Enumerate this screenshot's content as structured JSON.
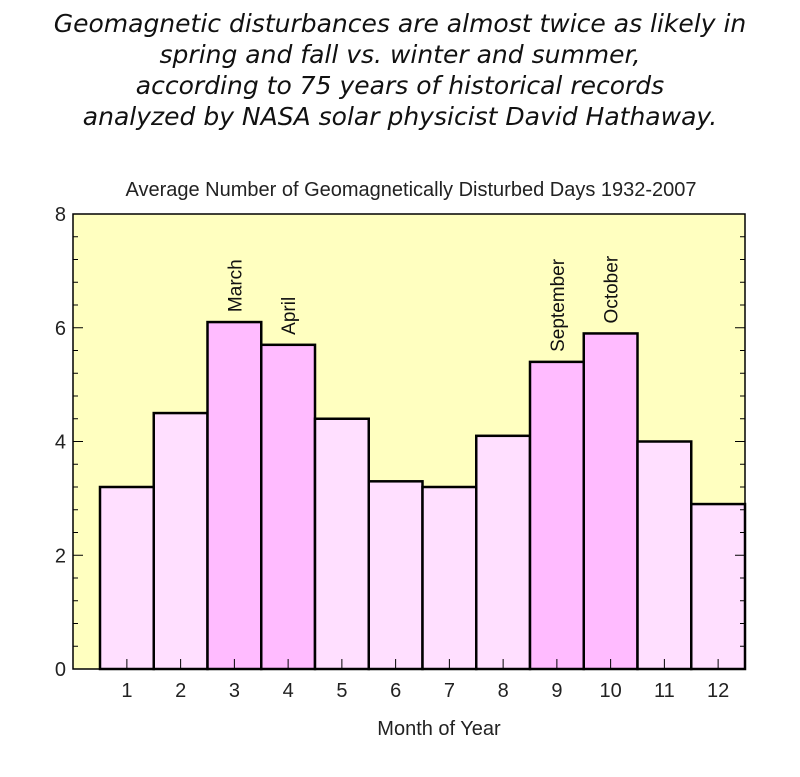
{
  "headline": [
    "Geomagnetic disturbances are almost twice as likely in",
    "spring and fall vs. winter and summer,",
    "according to 75 years of historical records",
    "analyzed by NASA solar physicist  David Hathaway."
  ],
  "chart_data": {
    "type": "bar",
    "title": "Average Number of Geomagnetically Disturbed Days 1932-2007",
    "xlabel": "Month of Year",
    "ylabel": "",
    "categories": [
      "1",
      "2",
      "3",
      "4",
      "5",
      "6",
      "7",
      "8",
      "9",
      "10",
      "11",
      "12"
    ],
    "values": [
      3.2,
      4.5,
      6.1,
      5.7,
      4.4,
      3.3,
      3.2,
      4.1,
      5.4,
      5.9,
      4.0,
      2.9
    ],
    "bar_labels": [
      "",
      "",
      "March",
      "April",
      "",
      "",
      "",
      "",
      "September",
      "October",
      "",
      ""
    ],
    "highlighted": [
      false,
      false,
      true,
      true,
      false,
      false,
      false,
      false,
      true,
      true,
      false,
      false
    ],
    "ylim": [
      0,
      8
    ],
    "yticks": [
      0,
      2,
      4,
      6,
      8
    ],
    "grid": false,
    "colors": {
      "plot_background": "#ffffc0",
      "bar_normal": "#ffdfff",
      "bar_highlight": "#ffbbff",
      "bar_outline": "#000000"
    }
  }
}
